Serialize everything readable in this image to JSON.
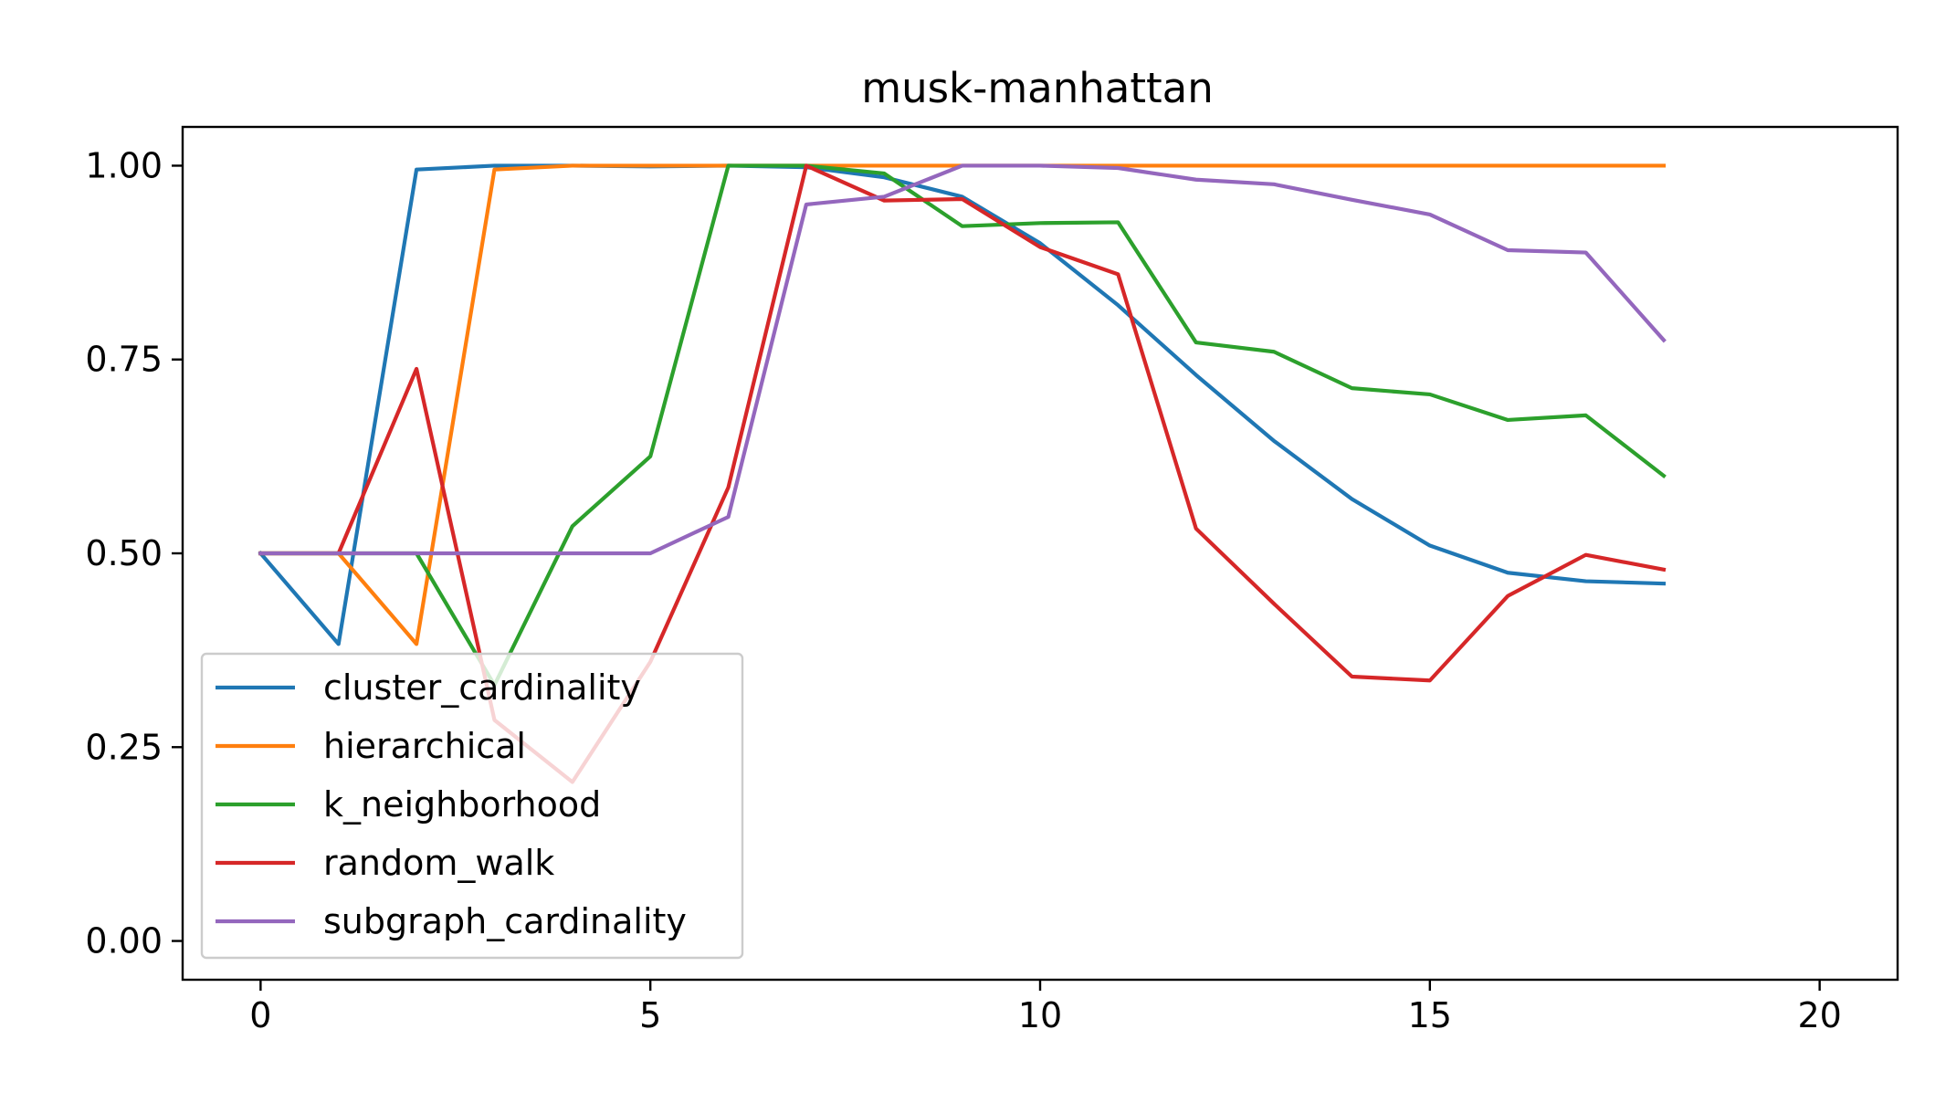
{
  "chart_data": {
    "type": "line",
    "title": "musk-manhattan",
    "xlabel": "",
    "ylabel": "",
    "xlim": [
      -1,
      21
    ],
    "ylim": [
      -0.05,
      1.05
    ],
    "x_ticks": [
      0,
      5,
      10,
      15,
      20
    ],
    "y_ticks": [
      0.0,
      0.25,
      0.5,
      0.75,
      1.0
    ],
    "x_tick_labels": [
      "0",
      "5",
      "10",
      "15",
      "20"
    ],
    "y_tick_labels": [
      "0.00",
      "0.25",
      "0.50",
      "0.75",
      "1.00"
    ],
    "grid": false,
    "legend_position": "lower-left",
    "x": [
      0,
      1,
      2,
      3,
      4,
      5,
      6,
      7,
      8,
      9,
      10,
      11,
      12,
      13,
      14,
      15,
      16,
      17,
      18
    ],
    "series": [
      {
        "name": "cluster_cardinality",
        "color": "#1f77b4",
        "values": [
          0.5,
          0.383,
          0.995,
          1.0,
          1.0,
          0.999,
          1.0,
          0.998,
          0.985,
          0.96,
          0.9,
          0.82,
          0.73,
          0.645,
          0.57,
          0.51,
          0.475,
          0.464,
          0.461
        ]
      },
      {
        "name": "hierarchical",
        "color": "#ff7f0e",
        "values": [
          0.5,
          0.5,
          0.383,
          0.995,
          1.0,
          1.0,
          1.0,
          1.0,
          1.0,
          1.0,
          1.0,
          1.0,
          1.0,
          1.0,
          1.0,
          1.0,
          1.0,
          1.0,
          1.0
        ]
      },
      {
        "name": "k_neighborhood",
        "color": "#2ca02c",
        "values": [
          0.5,
          0.5,
          0.5,
          0.33,
          0.535,
          0.625,
          1.0,
          1.0,
          0.99,
          0.922,
          0.926,
          0.927,
          0.772,
          0.76,
          0.713,
          0.705,
          0.672,
          0.678,
          0.6
        ]
      },
      {
        "name": "random_walk",
        "color": "#d62728",
        "values": [
          0.5,
          0.5,
          0.738,
          0.285,
          0.205,
          0.36,
          0.585,
          1.0,
          0.955,
          0.957,
          0.895,
          0.86,
          0.532,
          0.435,
          0.341,
          0.336,
          0.445,
          0.498,
          0.479
        ]
      },
      {
        "name": "subgraph_cardinality",
        "color": "#9467bd",
        "values": [
          0.5,
          0.5,
          0.5,
          0.5,
          0.5,
          0.5,
          0.547,
          0.95,
          0.96,
          1.0,
          1.0,
          0.997,
          0.982,
          0.976,
          0.956,
          0.937,
          0.891,
          0.888,
          0.775
        ]
      }
    ]
  }
}
